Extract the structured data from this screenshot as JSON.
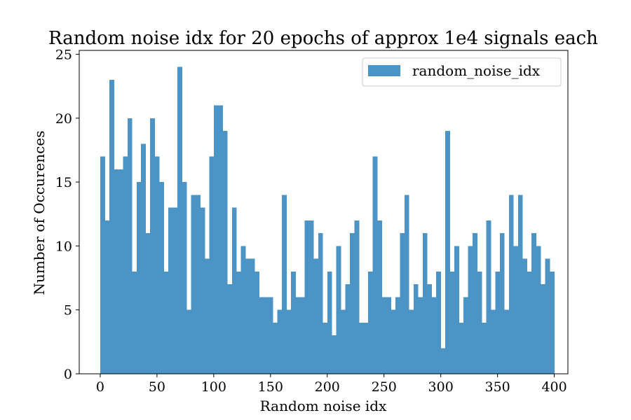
{
  "chart_data": {
    "type": "bar",
    "title": "Random noise idx for 20 epochs of approx 1e4 signals each",
    "xlabel": "Random noise idx",
    "ylabel": "Number of Occurences",
    "xlim": [
      -18.5,
      412
    ],
    "ylim": [
      0,
      25.3
    ],
    "bin_start": 0,
    "bin_width": 4,
    "xticks": [
      0,
      50,
      100,
      150,
      200,
      250,
      300,
      350,
      400
    ],
    "yticks": [
      0,
      5,
      10,
      15,
      20,
      25
    ],
    "color": "#4c94c5",
    "legend": {
      "position": "upper-right",
      "entries": [
        "random_noise_idx"
      ]
    },
    "grid": false,
    "values": [
      17,
      12,
      23,
      16,
      16,
      17,
      20,
      8,
      15,
      18,
      11,
      20,
      17,
      15,
      8,
      13,
      13,
      24,
      15,
      5,
      14,
      14,
      13,
      9,
      17,
      21,
      21,
      19,
      7,
      13,
      8,
      10,
      9,
      9,
      8,
      6,
      6,
      6,
      4,
      5,
      14,
      5,
      8,
      6,
      6,
      12,
      12,
      9,
      11,
      4,
      8,
      3,
      10,
      5,
      7,
      11,
      12,
      4,
      4,
      8,
      17,
      12,
      6,
      6,
      5,
      6,
      11,
      14,
      5,
      7,
      6,
      11,
      7,
      6,
      8,
      2,
      19,
      8,
      10,
      4,
      6,
      10,
      11,
      8,
      4,
      12,
      5,
      8,
      11,
      5,
      14,
      10,
      14,
      9,
      8,
      11,
      10,
      7,
      9,
      8
    ]
  }
}
